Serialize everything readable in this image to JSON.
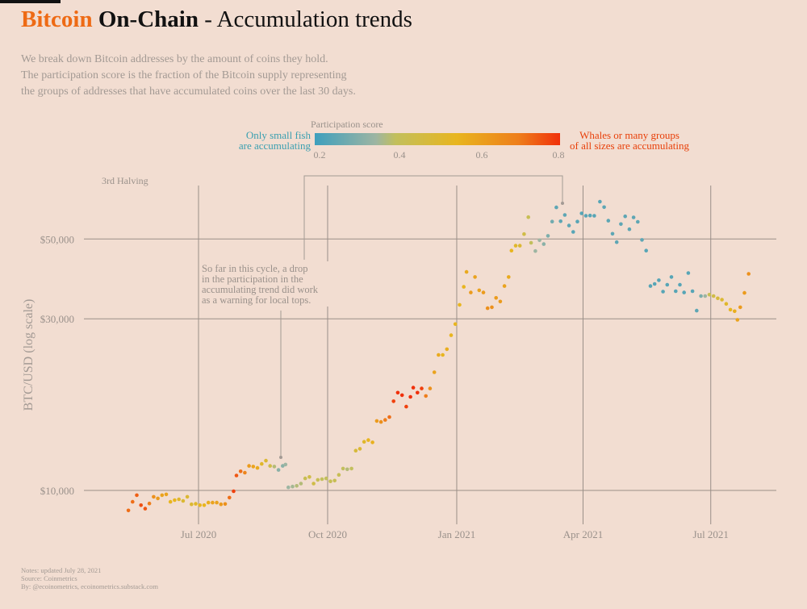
{
  "title": {
    "part1": "Bitcoin",
    "part2": "On-Chain",
    "part3": " - Accumulation trends"
  },
  "subtitle": [
    "We break down Bitcoin addresses by the amount of coins they hold.",
    "The participation score is the fraction of the Bitcoin supply representing",
    "the groups of addresses that have accumulated coins over the last 30 days."
  ],
  "notes": [
    "Notes: updated July 28, 2021",
    "Source: Coinmetrics",
    "By: @ecoinometrics, ecoinometrics.substack.com"
  ],
  "legend": {
    "title": "Participation score",
    "left_label": [
      "Only small fish",
      "are accumulating"
    ],
    "right_label": [
      "Whales or many groups",
      "of all sizes are accumulating"
    ],
    "ticks": [
      "0.2",
      "0.4",
      "0.6",
      "0.8"
    ],
    "colors": {
      "0.2": "#3e9fbd",
      "0.35": "#9db5a2",
      "0.4": "#c2bf5c",
      "0.55": "#e8b51f",
      "0.7": "#ee7e1b",
      "0.8": "#f0300a"
    },
    "left_color": "#3a9fb0",
    "right_color": "#e8400a"
  },
  "annotations": {
    "halving": "3rd Halving",
    "note": [
      "So far in this cycle, a drop",
      "in the participation in the",
      "accumulating trend did work",
      "as a warning for local tops."
    ]
  },
  "chart_data": {
    "type": "scatter",
    "title": "Bitcoin On-Chain - Accumulation trends",
    "xlabel": "",
    "ylabel": "BTC/USD (log scale)",
    "y_scale": "log",
    "y_ticks": [
      "$10,000",
      "$30,000",
      "$50,000"
    ],
    "y_tick_values": [
      10000,
      30000,
      50000
    ],
    "x_ticks": [
      "Jul 2020",
      "Oct 2020",
      "Jan 2021",
      "Apr 2021",
      "Jul 2021"
    ],
    "x_tick_values": [
      "2020-07-01",
      "2020-10-01",
      "2021-01-01",
      "2021-04-01",
      "2021-07-01"
    ],
    "color_by": "participation score",
    "color_range": [
      0.2,
      0.8
    ],
    "grid": true,
    "points": [
      [
        "2020-05-12",
        8800,
        0.72
      ],
      [
        "2020-05-15",
        9300,
        0.72
      ],
      [
        "2020-05-18",
        9700,
        0.74
      ],
      [
        "2020-05-21",
        9100,
        0.76
      ],
      [
        "2020-05-24",
        8900,
        0.75
      ],
      [
        "2020-05-27",
        9200,
        0.7
      ],
      [
        "2020-05-30",
        9600,
        0.65
      ],
      [
        "2020-06-02",
        9500,
        0.62
      ],
      [
        "2020-06-05",
        9700,
        0.6
      ],
      [
        "2020-06-08",
        9750,
        0.6
      ],
      [
        "2020-06-11",
        9300,
        0.55
      ],
      [
        "2020-06-14",
        9400,
        0.55
      ],
      [
        "2020-06-17",
        9450,
        0.52
      ],
      [
        "2020-06-20",
        9350,
        0.5
      ],
      [
        "2020-06-23",
        9600,
        0.5
      ],
      [
        "2020-06-26",
        9150,
        0.5
      ],
      [
        "2020-06-29",
        9180,
        0.52
      ],
      [
        "2020-07-02",
        9100,
        0.55
      ],
      [
        "2020-07-05",
        9100,
        0.55
      ],
      [
        "2020-07-08",
        9250,
        0.57
      ],
      [
        "2020-07-11",
        9250,
        0.6
      ],
      [
        "2020-07-14",
        9250,
        0.6
      ],
      [
        "2020-07-17",
        9150,
        0.62
      ],
      [
        "2020-07-20",
        9170,
        0.65
      ],
      [
        "2020-07-23",
        9550,
        0.72
      ],
      [
        "2020-07-26",
        9950,
        0.78
      ],
      [
        "2020-07-28",
        11000,
        0.75
      ],
      [
        "2020-07-31",
        11300,
        0.72
      ],
      [
        "2020-08-03",
        11200,
        0.68
      ],
      [
        "2020-08-06",
        11700,
        0.62
      ],
      [
        "2020-08-09",
        11650,
        0.6
      ],
      [
        "2020-08-12",
        11550,
        0.58
      ],
      [
        "2020-08-15",
        11850,
        0.52
      ],
      [
        "2020-08-18",
        12100,
        0.5
      ],
      [
        "2020-08-21",
        11700,
        0.45
      ],
      [
        "2020-08-24",
        11650,
        0.38
      ],
      [
        "2020-08-27",
        11400,
        0.32
      ],
      [
        "2020-08-30",
        11700,
        0.32
      ],
      [
        "2020-09-01",
        11800,
        0.35
      ],
      [
        "2020-09-03",
        10200,
        0.35
      ],
      [
        "2020-09-06",
        10250,
        0.36
      ],
      [
        "2020-09-09",
        10300,
        0.38
      ],
      [
        "2020-09-12",
        10450,
        0.38
      ],
      [
        "2020-09-15",
        10800,
        0.42
      ],
      [
        "2020-09-18",
        10900,
        0.45
      ],
      [
        "2020-09-21",
        10450,
        0.45
      ],
      [
        "2020-09-24",
        10700,
        0.42
      ],
      [
        "2020-09-27",
        10750,
        0.4
      ],
      [
        "2020-09-30",
        10800,
        0.4
      ],
      [
        "2020-10-03",
        10600,
        0.42
      ],
      [
        "2020-10-06",
        10650,
        0.42
      ],
      [
        "2020-10-09",
        11050,
        0.42
      ],
      [
        "2020-10-12",
        11500,
        0.4
      ],
      [
        "2020-10-15",
        11450,
        0.38
      ],
      [
        "2020-10-18",
        11500,
        0.4
      ],
      [
        "2020-10-21",
        12900,
        0.48
      ],
      [
        "2020-10-24",
        13050,
        0.5
      ],
      [
        "2020-10-27",
        13650,
        0.52
      ],
      [
        "2020-10-30",
        13800,
        0.55
      ],
      [
        "2020-11-02",
        13600,
        0.56
      ],
      [
        "2020-11-05",
        15600,
        0.62
      ],
      [
        "2020-11-08",
        15500,
        0.65
      ],
      [
        "2020-11-11",
        15700,
        0.7
      ],
      [
        "2020-11-14",
        16000,
        0.72
      ],
      [
        "2020-11-17",
        17700,
        0.78
      ],
      [
        "2020-11-20",
        18700,
        0.8
      ],
      [
        "2020-11-23",
        18400,
        0.8
      ],
      [
        "2020-11-26",
        17100,
        0.78
      ],
      [
        "2020-11-29",
        18200,
        0.8
      ],
      [
        "2020-12-01",
        19300,
        0.8
      ],
      [
        "2020-12-04",
        18700,
        0.8
      ],
      [
        "2020-12-07",
        19200,
        0.78
      ],
      [
        "2020-12-10",
        18300,
        0.7
      ],
      [
        "2020-12-13",
        19200,
        0.65
      ],
      [
        "2020-12-16",
        21300,
        0.6
      ],
      [
        "2020-12-19",
        23800,
        0.58
      ],
      [
        "2020-12-22",
        23800,
        0.55
      ],
      [
        "2020-12-25",
        24700,
        0.57
      ],
      [
        "2020-12-28",
        27000,
        0.55
      ],
      [
        "2020-12-31",
        29000,
        0.55
      ],
      [
        "2021-01-03",
        32800,
        0.55
      ],
      [
        "2021-01-06",
        36800,
        0.55
      ],
      [
        "2021-01-08",
        40500,
        0.58
      ],
      [
        "2021-01-11",
        35500,
        0.62
      ],
      [
        "2021-01-14",
        39200,
        0.6
      ],
      [
        "2021-01-17",
        36000,
        0.6
      ],
      [
        "2021-01-20",
        35500,
        0.62
      ],
      [
        "2021-01-23",
        32100,
        0.65
      ],
      [
        "2021-01-26",
        32300,
        0.65
      ],
      [
        "2021-01-29",
        34300,
        0.62
      ],
      [
        "2021-02-01",
        33500,
        0.62
      ],
      [
        "2021-02-04",
        37000,
        0.6
      ],
      [
        "2021-02-07",
        39200,
        0.58
      ],
      [
        "2021-02-09",
        46400,
        0.55
      ],
      [
        "2021-02-12",
        47900,
        0.52
      ],
      [
        "2021-02-15",
        47900,
        0.5
      ],
      [
        "2021-02-18",
        51600,
        0.45
      ],
      [
        "2021-02-21",
        57500,
        0.42
      ],
      [
        "2021-02-23",
        48800,
        0.4
      ],
      [
        "2021-02-26",
        46300,
        0.35
      ],
      [
        "2021-03-01",
        49600,
        0.35
      ],
      [
        "2021-03-04",
        48400,
        0.32
      ],
      [
        "2021-03-07",
        51000,
        0.3
      ],
      [
        "2021-03-10",
        55900,
        0.28
      ],
      [
        "2021-03-13",
        61200,
        0.25
      ],
      [
        "2021-03-16",
        56000,
        0.25
      ],
      [
        "2021-03-19",
        58300,
        0.25
      ],
      [
        "2021-03-22",
        54500,
        0.25
      ],
      [
        "2021-03-25",
        52300,
        0.24
      ],
      [
        "2021-03-28",
        55900,
        0.24
      ],
      [
        "2021-03-31",
        58900,
        0.24
      ],
      [
        "2021-04-03",
        58000,
        0.24
      ],
      [
        "2021-04-06",
        58100,
        0.24
      ],
      [
        "2021-04-09",
        58000,
        0.24
      ],
      [
        "2021-04-13",
        63500,
        0.24
      ],
      [
        "2021-04-16",
        61300,
        0.25
      ],
      [
        "2021-04-19",
        56200,
        0.25
      ],
      [
        "2021-04-22",
        51700,
        0.25
      ],
      [
        "2021-04-25",
        49000,
        0.25
      ],
      [
        "2021-04-28",
        55000,
        0.25
      ],
      [
        "2021-05-01",
        57800,
        0.25
      ],
      [
        "2021-05-04",
        53200,
        0.25
      ],
      [
        "2021-05-07",
        57400,
        0.25
      ],
      [
        "2021-05-10",
        55800,
        0.25
      ],
      [
        "2021-05-13",
        49700,
        0.25
      ],
      [
        "2021-05-16",
        46400,
        0.24
      ],
      [
        "2021-05-19",
        37000,
        0.24
      ],
      [
        "2021-05-22",
        37500,
        0.24
      ],
      [
        "2021-05-25",
        38400,
        0.24
      ],
      [
        "2021-05-28",
        35700,
        0.24
      ],
      [
        "2021-05-31",
        37300,
        0.24
      ],
      [
        "2021-06-03",
        39200,
        0.24
      ],
      [
        "2021-06-06",
        35800,
        0.24
      ],
      [
        "2021-06-09",
        37300,
        0.24
      ],
      [
        "2021-06-12",
        35500,
        0.24
      ],
      [
        "2021-06-15",
        40200,
        0.24
      ],
      [
        "2021-06-18",
        35800,
        0.24
      ],
      [
        "2021-06-21",
        31600,
        0.25
      ],
      [
        "2021-06-24",
        34700,
        0.3
      ],
      [
        "2021-06-27",
        34700,
        0.35
      ],
      [
        "2021-06-30",
        35000,
        0.42
      ],
      [
        "2021-07-03",
        34700,
        0.45
      ],
      [
        "2021-07-06",
        34200,
        0.48
      ],
      [
        "2021-07-09",
        33900,
        0.5
      ],
      [
        "2021-07-12",
        33000,
        0.52
      ],
      [
        "2021-07-15",
        31800,
        0.55
      ],
      [
        "2021-07-18",
        31500,
        0.57
      ],
      [
        "2021-07-20",
        29800,
        0.6
      ],
      [
        "2021-07-22",
        32300,
        0.62
      ],
      [
        "2021-07-25",
        35400,
        0.62
      ],
      [
        "2021-07-28",
        40000,
        0.65
      ]
    ]
  }
}
